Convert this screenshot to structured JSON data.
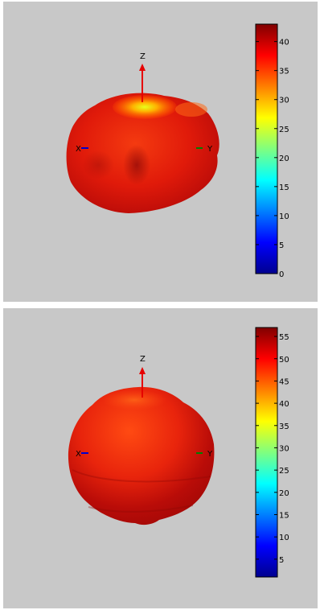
{
  "chart_data": [
    {
      "type": "heatmap",
      "title": "",
      "axes": {
        "x_label": "X",
        "y_label": "Y",
        "z_label": "Z"
      },
      "colorbar": {
        "min": 0,
        "max": 43,
        "ticks": [
          0,
          5,
          10,
          15,
          20,
          25,
          30,
          35,
          40
        ]
      }
    },
    {
      "type": "heatmap",
      "title": "",
      "axes": {
        "x_label": "X",
        "y_label": "Y",
        "z_label": "Z"
      },
      "colorbar": {
        "min": 1,
        "max": 57,
        "ticks": [
          5,
          10,
          15,
          20,
          25,
          30,
          35,
          40,
          45,
          50,
          55
        ]
      }
    }
  ],
  "colors": {
    "panel_background": "#c8c8c8",
    "axis_z": "#e60000",
    "axis_x": "#0000cc",
    "axis_y": "#008000"
  }
}
